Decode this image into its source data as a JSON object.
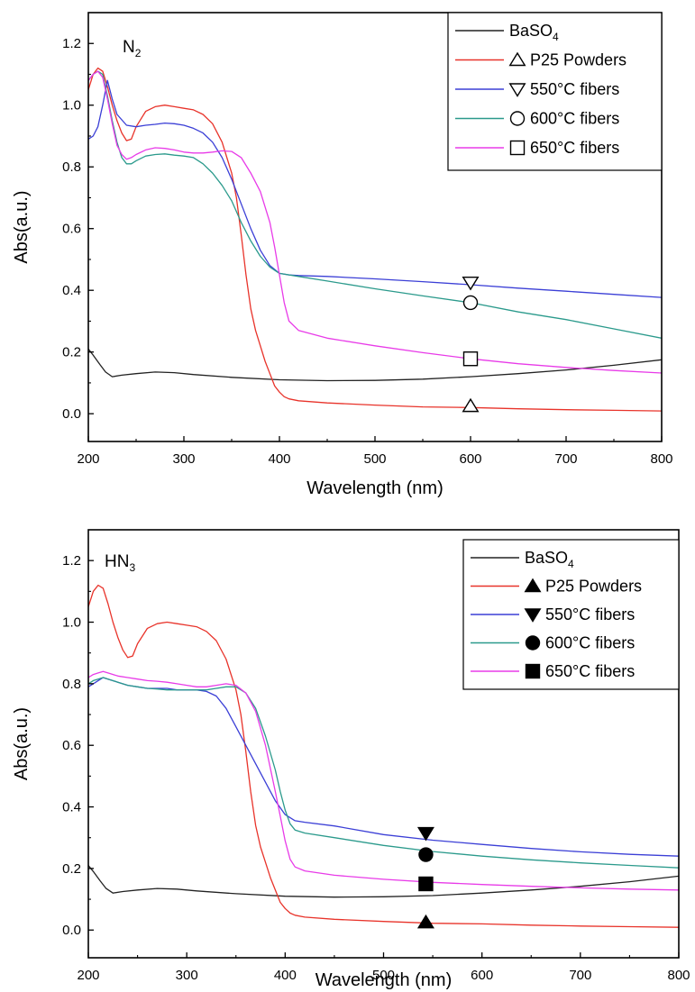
{
  "chart_data": [
    {
      "type": "line",
      "annotation": {
        "base": "N",
        "sub": "2"
      },
      "xlabel": "Wavelength (nm)",
      "ylabel": "Abs(a.u.)",
      "xlim": [
        200,
        800
      ],
      "ylim": [
        -0.09,
        1.3
      ],
      "xticks": [
        200,
        300,
        400,
        500,
        600,
        700,
        800
      ],
      "yticks": [
        0.0,
        0.2,
        0.4,
        0.6,
        0.8,
        1.0,
        1.2
      ],
      "grid": false,
      "legend_position": "top-right",
      "marker_fill": "hollow",
      "series": [
        {
          "name": "BaSO",
          "name_sub": "4",
          "color": "#222222",
          "marker": "none",
          "x": [
            200,
            205,
            212,
            218,
            225,
            235,
            250,
            270,
            290,
            310,
            350,
            400,
            450,
            500,
            550,
            600,
            650,
            700,
            750,
            800
          ],
          "y": [
            0.21,
            0.19,
            0.16,
            0.135,
            0.12,
            0.125,
            0.13,
            0.135,
            0.133,
            0.127,
            0.118,
            0.11,
            0.107,
            0.108,
            0.112,
            0.12,
            0.13,
            0.142,
            0.157,
            0.175
          ]
        },
        {
          "name": "P25 Powders",
          "color": "#e8332a",
          "marker": "triangle-up",
          "marker_x": 600,
          "marker_y": 0.025,
          "x": [
            200,
            205,
            210,
            215,
            220,
            225,
            230,
            235,
            240,
            245,
            250,
            260,
            270,
            280,
            290,
            300,
            310,
            320,
            330,
            340,
            350,
            355,
            360,
            365,
            370,
            375,
            380,
            385,
            390,
            395,
            400,
            405,
            410,
            420,
            450,
            500,
            550,
            600,
            650,
            700,
            750,
            800
          ],
          "y": [
            1.05,
            1.1,
            1.12,
            1.11,
            1.06,
            1.0,
            0.95,
            0.91,
            0.885,
            0.89,
            0.93,
            0.98,
            0.995,
            1.0,
            0.995,
            0.99,
            0.985,
            0.97,
            0.94,
            0.88,
            0.78,
            0.7,
            0.58,
            0.45,
            0.34,
            0.27,
            0.22,
            0.17,
            0.13,
            0.09,
            0.07,
            0.055,
            0.048,
            0.042,
            0.035,
            0.028,
            0.022,
            0.02,
            0.016,
            0.013,
            0.011,
            0.009
          ]
        },
        {
          "name": "550°C fibers",
          "color": "#3b3fd6",
          "marker": "triangle-down",
          "marker_x": 600,
          "marker_y": 0.425,
          "x": [
            200,
            205,
            210,
            215,
            220,
            225,
            230,
            240,
            250,
            260,
            270,
            280,
            290,
            300,
            310,
            320,
            330,
            340,
            350,
            360,
            370,
            380,
            390,
            400,
            410,
            420,
            450,
            500,
            550,
            600,
            650,
            700,
            750,
            800
          ],
          "y": [
            0.89,
            0.9,
            0.93,
            1.0,
            1.08,
            1.02,
            0.97,
            0.935,
            0.93,
            0.935,
            0.938,
            0.942,
            0.94,
            0.935,
            0.925,
            0.91,
            0.88,
            0.83,
            0.76,
            0.68,
            0.6,
            0.53,
            0.48,
            0.455,
            0.45,
            0.448,
            0.445,
            0.437,
            0.428,
            0.418,
            0.407,
            0.397,
            0.387,
            0.377
          ]
        },
        {
          "name": "600°C fibers",
          "color": "#2b9a8c",
          "marker": "circle",
          "marker_x": 600,
          "marker_y": 0.36,
          "x": [
            200,
            205,
            210,
            215,
            220,
            225,
            230,
            235,
            240,
            245,
            250,
            260,
            270,
            280,
            290,
            300,
            310,
            320,
            330,
            340,
            350,
            360,
            370,
            380,
            390,
            400,
            420,
            450,
            500,
            550,
            600,
            650,
            700,
            750,
            800
          ],
          "y": [
            1.08,
            1.1,
            1.11,
            1.1,
            1.03,
            0.95,
            0.88,
            0.83,
            0.81,
            0.81,
            0.82,
            0.835,
            0.84,
            0.842,
            0.838,
            0.835,
            0.83,
            0.81,
            0.78,
            0.74,
            0.69,
            0.62,
            0.56,
            0.51,
            0.475,
            0.455,
            0.445,
            0.43,
            0.405,
            0.382,
            0.36,
            0.33,
            0.305,
            0.275,
            0.245
          ]
        },
        {
          "name": "650°C fibers",
          "color": "#e83be8",
          "marker": "square",
          "marker_x": 600,
          "marker_y": 0.178,
          "x": [
            200,
            205,
            210,
            215,
            220,
            225,
            230,
            235,
            240,
            245,
            250,
            260,
            270,
            280,
            290,
            300,
            310,
            320,
            330,
            340,
            350,
            360,
            370,
            380,
            390,
            395,
            400,
            405,
            410,
            420,
            450,
            500,
            550,
            600,
            650,
            700,
            750,
            800
          ],
          "y": [
            1.08,
            1.1,
            1.11,
            1.09,
            1.02,
            0.94,
            0.87,
            0.84,
            0.825,
            0.83,
            0.84,
            0.855,
            0.862,
            0.86,
            0.855,
            0.848,
            0.845,
            0.845,
            0.848,
            0.852,
            0.85,
            0.83,
            0.78,
            0.72,
            0.62,
            0.54,
            0.45,
            0.36,
            0.3,
            0.27,
            0.245,
            0.22,
            0.198,
            0.178,
            0.162,
            0.15,
            0.14,
            0.132
          ]
        }
      ]
    },
    {
      "type": "line",
      "annotation": {
        "base": "HN",
        "sub": "3"
      },
      "xlabel": "Wavelength (nm)",
      "ylabel": "Abs(a.u.)",
      "xlim": [
        200,
        800
      ],
      "ylim": [
        -0.09,
        1.3
      ],
      "xticks": [
        200,
        300,
        400,
        500,
        600,
        700,
        800
      ],
      "yticks": [
        0.0,
        0.2,
        0.4,
        0.6,
        0.8,
        1.0,
        1.2
      ],
      "grid": false,
      "legend_position": "top-right",
      "marker_fill": "solid",
      "series": [
        {
          "name": "BaSO",
          "name_sub": "4",
          "color": "#222222",
          "marker": "none",
          "x": [
            200,
            205,
            212,
            218,
            225,
            235,
            250,
            270,
            290,
            310,
            350,
            400,
            450,
            500,
            550,
            600,
            650,
            700,
            750,
            800
          ],
          "y": [
            0.21,
            0.19,
            0.16,
            0.135,
            0.12,
            0.125,
            0.13,
            0.135,
            0.133,
            0.127,
            0.118,
            0.11,
            0.107,
            0.108,
            0.112,
            0.12,
            0.13,
            0.142,
            0.157,
            0.175
          ]
        },
        {
          "name": "P25 Powders",
          "color": "#e8332a",
          "marker": "triangle-up",
          "marker_x": 543,
          "marker_y": 0.025,
          "x": [
            200,
            205,
            210,
            215,
            220,
            225,
            230,
            235,
            240,
            245,
            250,
            260,
            270,
            280,
            290,
            300,
            310,
            320,
            330,
            340,
            350,
            355,
            360,
            365,
            370,
            375,
            380,
            385,
            390,
            395,
            400,
            405,
            410,
            420,
            450,
            500,
            550,
            600,
            650,
            700,
            750,
            800
          ],
          "y": [
            1.05,
            1.1,
            1.12,
            1.11,
            1.06,
            1.0,
            0.95,
            0.91,
            0.885,
            0.89,
            0.93,
            0.98,
            0.995,
            1.0,
            0.995,
            0.99,
            0.985,
            0.97,
            0.94,
            0.88,
            0.78,
            0.7,
            0.58,
            0.45,
            0.34,
            0.27,
            0.22,
            0.17,
            0.13,
            0.09,
            0.07,
            0.055,
            0.048,
            0.042,
            0.035,
            0.028,
            0.022,
            0.02,
            0.016,
            0.013,
            0.011,
            0.009
          ]
        },
        {
          "name": "550°C fibers",
          "color": "#3b3fd6",
          "marker": "triangle-down",
          "marker_x": 543,
          "marker_y": 0.315,
          "x": [
            200,
            205,
            210,
            215,
            220,
            230,
            240,
            250,
            260,
            270,
            280,
            290,
            300,
            310,
            320,
            330,
            340,
            350,
            360,
            370,
            380,
            390,
            400,
            410,
            420,
            450,
            500,
            550,
            600,
            650,
            700,
            750,
            800
          ],
          "y": [
            0.79,
            0.8,
            0.81,
            0.82,
            0.815,
            0.805,
            0.795,
            0.79,
            0.785,
            0.785,
            0.785,
            0.78,
            0.78,
            0.78,
            0.775,
            0.76,
            0.72,
            0.66,
            0.6,
            0.54,
            0.48,
            0.42,
            0.375,
            0.355,
            0.35,
            0.338,
            0.31,
            0.292,
            0.278,
            0.265,
            0.254,
            0.246,
            0.24
          ]
        },
        {
          "name": "600°C fibers",
          "color": "#2b9a8c",
          "marker": "circle",
          "marker_x": 543,
          "marker_y": 0.245,
          "x": [
            200,
            205,
            210,
            215,
            220,
            230,
            240,
            250,
            260,
            270,
            280,
            290,
            300,
            310,
            320,
            330,
            340,
            350,
            360,
            370,
            380,
            390,
            395,
            400,
            405,
            410,
            420,
            450,
            500,
            550,
            600,
            650,
            700,
            750,
            800
          ],
          "y": [
            0.8,
            0.81,
            0.815,
            0.82,
            0.815,
            0.805,
            0.795,
            0.79,
            0.785,
            0.783,
            0.78,
            0.78,
            0.78,
            0.78,
            0.78,
            0.785,
            0.79,
            0.79,
            0.77,
            0.72,
            0.63,
            0.52,
            0.45,
            0.39,
            0.345,
            0.325,
            0.315,
            0.3,
            0.275,
            0.255,
            0.24,
            0.228,
            0.218,
            0.21,
            0.202
          ]
        },
        {
          "name": "650°C fibers",
          "color": "#e83be8",
          "marker": "square",
          "marker_x": 543,
          "marker_y": 0.15,
          "x": [
            200,
            205,
            210,
            215,
            220,
            230,
            240,
            250,
            260,
            270,
            280,
            290,
            300,
            310,
            320,
            330,
            340,
            350,
            360,
            370,
            380,
            390,
            395,
            400,
            405,
            410,
            420,
            450,
            500,
            550,
            600,
            650,
            700,
            750,
            800
          ],
          "y": [
            0.82,
            0.83,
            0.835,
            0.84,
            0.835,
            0.825,
            0.82,
            0.815,
            0.81,
            0.808,
            0.805,
            0.8,
            0.795,
            0.79,
            0.79,
            0.795,
            0.8,
            0.795,
            0.77,
            0.71,
            0.6,
            0.45,
            0.37,
            0.29,
            0.23,
            0.205,
            0.192,
            0.178,
            0.165,
            0.155,
            0.148,
            0.142,
            0.137,
            0.133,
            0.13
          ]
        }
      ]
    }
  ]
}
